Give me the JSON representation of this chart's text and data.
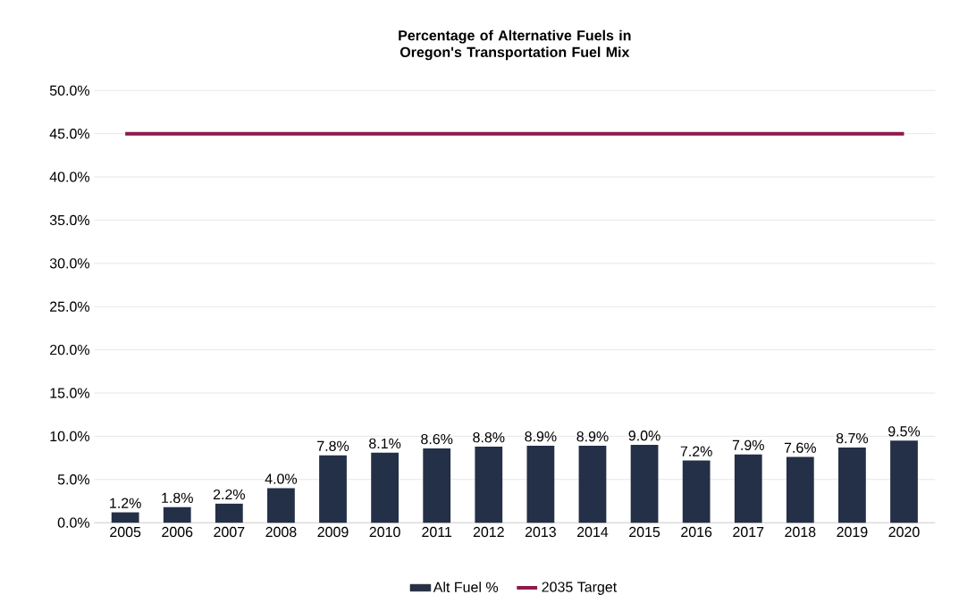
{
  "chart_data": {
    "type": "bar",
    "title": "Percentage of Alternative Fuels in Oregon's Transportation Fuel Mix",
    "categories": [
      "2005",
      "2006",
      "2007",
      "2008",
      "2009",
      "2010",
      "2011",
      "2012",
      "2013",
      "2014",
      "2015",
      "2016",
      "2017",
      "2018",
      "2019",
      "2020"
    ],
    "series": [
      {
        "name": "Alt Fuel %",
        "color": "#243047",
        "values": [
          1.2,
          1.8,
          2.2,
          4.0,
          7.8,
          8.1,
          8.6,
          8.8,
          8.9,
          8.9,
          9.0,
          7.2,
          7.9,
          7.6,
          8.7,
          9.5
        ],
        "value_labels": [
          "1.2%",
          "1.8%",
          "2.2%",
          "4.0%",
          "7.8%",
          "8.1%",
          "8.6%",
          "8.8%",
          "8.9%",
          "8.9%",
          "9.0%",
          "7.2%",
          "7.9%",
          "7.6%",
          "8.7%",
          "9.5%"
        ]
      },
      {
        "name": "2035 Target",
        "type": "line",
        "color": "#8b1a4b",
        "values": [
          45,
          45,
          45,
          45,
          45,
          45,
          45,
          45,
          45,
          45,
          45,
          45,
          45,
          45,
          45,
          45
        ]
      }
    ],
    "ylim": [
      0,
      50
    ],
    "yticks": [
      {
        "value": 0,
        "label": "0.0%"
      },
      {
        "value": 5,
        "label": "5.0%"
      },
      {
        "value": 10,
        "label": "10.0%"
      },
      {
        "value": 15,
        "label": "15.0%"
      },
      {
        "value": 20,
        "label": "20.0%"
      },
      {
        "value": 25,
        "label": "25.0%"
      },
      {
        "value": 30,
        "label": "30.0%"
      },
      {
        "value": 35,
        "label": "35.0%"
      },
      {
        "value": 40,
        "label": "40.0%"
      },
      {
        "value": 45,
        "label": "45.0%"
      },
      {
        "value": 50,
        "label": "50.0%"
      }
    ],
    "grid": "y",
    "legend": "bottom"
  }
}
